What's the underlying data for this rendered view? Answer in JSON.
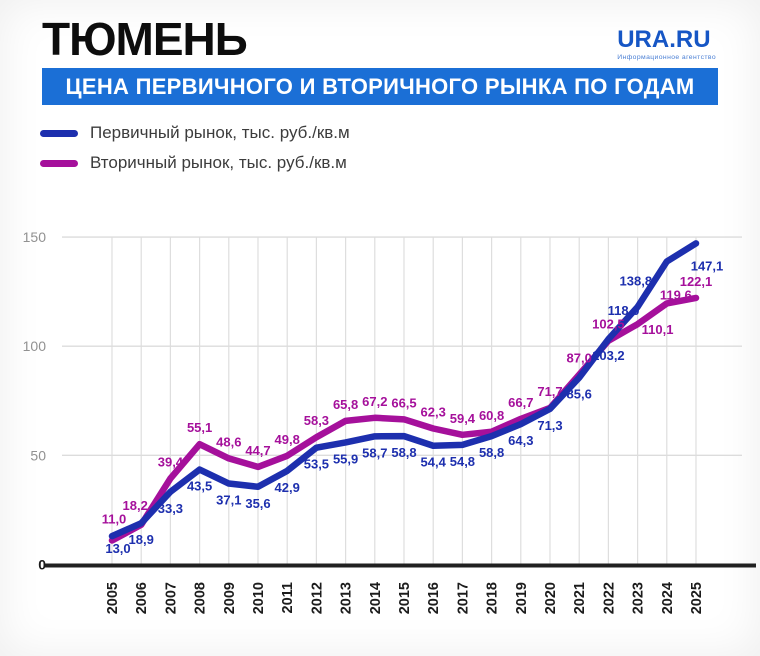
{
  "header": {
    "title": "ТЮМЕНЬ",
    "logo": {
      "text": "URA.RU",
      "tagline": "Информационное агентство"
    },
    "banner": "ЦЕНА ПЕРВИЧНОГО И ВТОРИЧНОГО РЫНКА ПО ГОДАМ"
  },
  "legend": [
    {
      "label": "Первичный рынок, тыс. руб./кв.м",
      "color": "#1d2fae"
    },
    {
      "label": "Вторичный рынок, тыс. руб./кв.м",
      "color": "#a5109b"
    }
  ],
  "chart_data": {
    "type": "line",
    "categories": [
      "2005",
      "2006",
      "2007",
      "2008",
      "2009",
      "2010",
      "2011",
      "2012",
      "2013",
      "2014",
      "2015",
      "2016",
      "2017",
      "2018",
      "2019",
      "2020",
      "2021",
      "2022",
      "2023",
      "2024",
      "2025"
    ],
    "series": [
      {
        "name": "Первичный рынок, тыс. руб./кв.м",
        "color": "#1d2fae",
        "values": [
          13.0,
          18.9,
          33.3,
          43.5,
          37.1,
          35.6,
          42.9,
          53.5,
          55.9,
          58.7,
          58.8,
          54.4,
          54.8,
          58.8,
          64.3,
          71.3,
          85.6,
          103.2,
          118.0,
          138.8,
          147.1
        ]
      },
      {
        "name": "Вторичный рынок, тыс. руб./кв.м",
        "color": "#a5109b",
        "values": [
          11.0,
          18.2,
          39.4,
          55.1,
          48.6,
          44.7,
          49.8,
          58.3,
          65.8,
          67.2,
          66.5,
          62.3,
          59.4,
          60.8,
          66.7,
          71.7,
          87.0,
          102.5,
          110.1,
          119.6,
          122.1
        ]
      }
    ],
    "title": "",
    "xlabel": "",
    "ylabel": "",
    "ylim": [
      0,
      150
    ],
    "yticks": [
      0,
      50,
      100,
      150
    ],
    "grid": true,
    "legend_position": "top-left",
    "decimal_separator": ","
  }
}
